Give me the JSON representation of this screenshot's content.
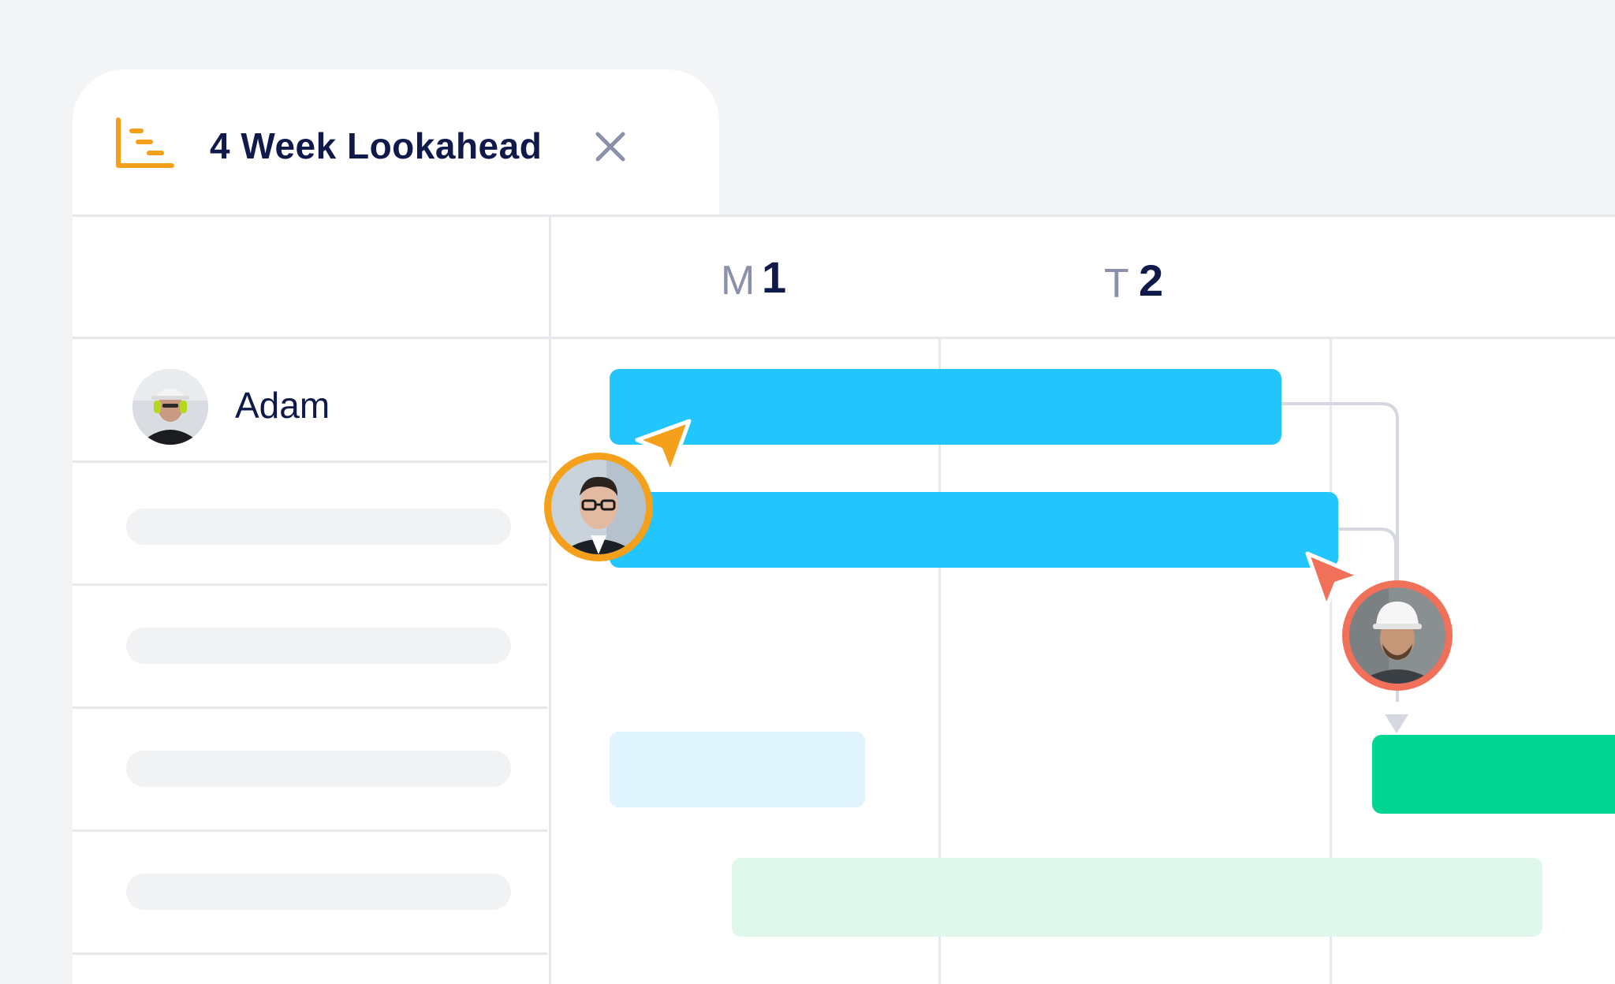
{
  "tab": {
    "title": "4 Week Lookahead",
    "icon": "gantt-chart-icon",
    "close_icon": "close-icon"
  },
  "timeline": {
    "days": [
      {
        "letter": "M",
        "number": "1"
      },
      {
        "letter": "T",
        "number": "2"
      }
    ]
  },
  "rows": [
    {
      "name": "Adam",
      "avatar": "worker-helmet-headphones-avatar"
    },
    {
      "name": "",
      "placeholder": true
    },
    {
      "name": "",
      "placeholder": true
    },
    {
      "name": "",
      "placeholder": true
    },
    {
      "name": "",
      "placeholder": true
    }
  ],
  "collaborators": [
    {
      "avatar": "man-glasses-avatar",
      "cursor_color": "#f5a01a"
    },
    {
      "avatar": "man-hardhat-avatar",
      "cursor_color": "#f0705a"
    }
  ],
  "colors": {
    "accent_orange": "#f5a01a",
    "accent_coral": "#f0705a",
    "task_blue": "#22c6fc",
    "task_green": "#00d692",
    "title_navy": "#0f1a4a"
  }
}
